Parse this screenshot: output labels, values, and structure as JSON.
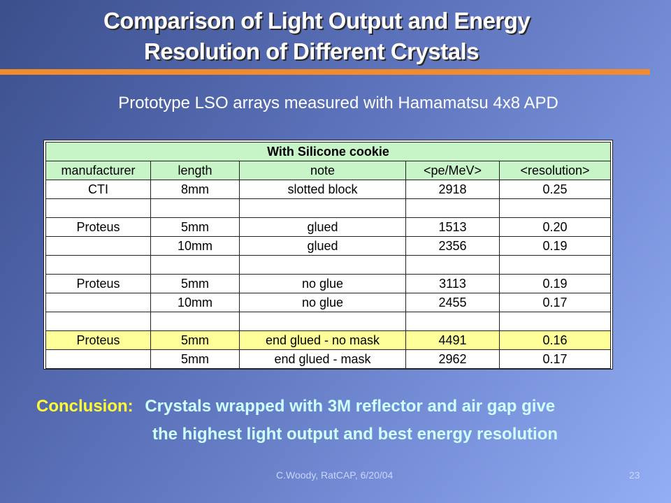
{
  "title": {
    "line1": "Comparison of Light Output and Energy",
    "line2": "Resolution of Different Crystals"
  },
  "subtitle": "Prototype LSO arrays measured with Hamamatsu 4x8 APD",
  "table": {
    "caption": "With Silicone cookie",
    "headers": [
      "manufacturer",
      "length",
      "note",
      "<pe/MeV>",
      "<resolution>"
    ],
    "rows": [
      [
        "CTI",
        "8mm",
        "slotted block",
        "2918",
        "0.25"
      ],
      [
        "",
        "",
        "",
        "",
        ""
      ],
      [
        "Proteus",
        "5mm",
        "glued",
        "1513",
        "0.20"
      ],
      [
        "",
        "10mm",
        "glued",
        "2356",
        "0.19"
      ],
      [
        "",
        "",
        "",
        "",
        ""
      ],
      [
        "Proteus",
        "5mm",
        "no glue",
        "3113",
        "0.19"
      ],
      [
        "",
        "10mm",
        "no glue",
        "2455",
        "0.17"
      ],
      [
        "",
        "",
        "",
        "",
        ""
      ],
      [
        "Proteus",
        "5mm",
        "end glued - no mask",
        "4491",
        "0.16"
      ],
      [
        "",
        "5mm",
        "end glued - mask",
        "2962",
        "0.17"
      ]
    ]
  },
  "conclusion": {
    "label": "Conclusion:",
    "line1": "Crystals wrapped with 3M reflector and air gap give",
    "line2": "the highest light output and best energy resolution"
  },
  "footer": {
    "credit": "C.Woody, RatCAP, 6/20/04",
    "page": "23"
  },
  "colors": {
    "accent_rule": "#f28a2e",
    "header_fill": "#c8f5c8",
    "highlight_fill": "#ffff99",
    "conclusion_label": "#ffff33",
    "conclusion_text": "#ccffff"
  }
}
